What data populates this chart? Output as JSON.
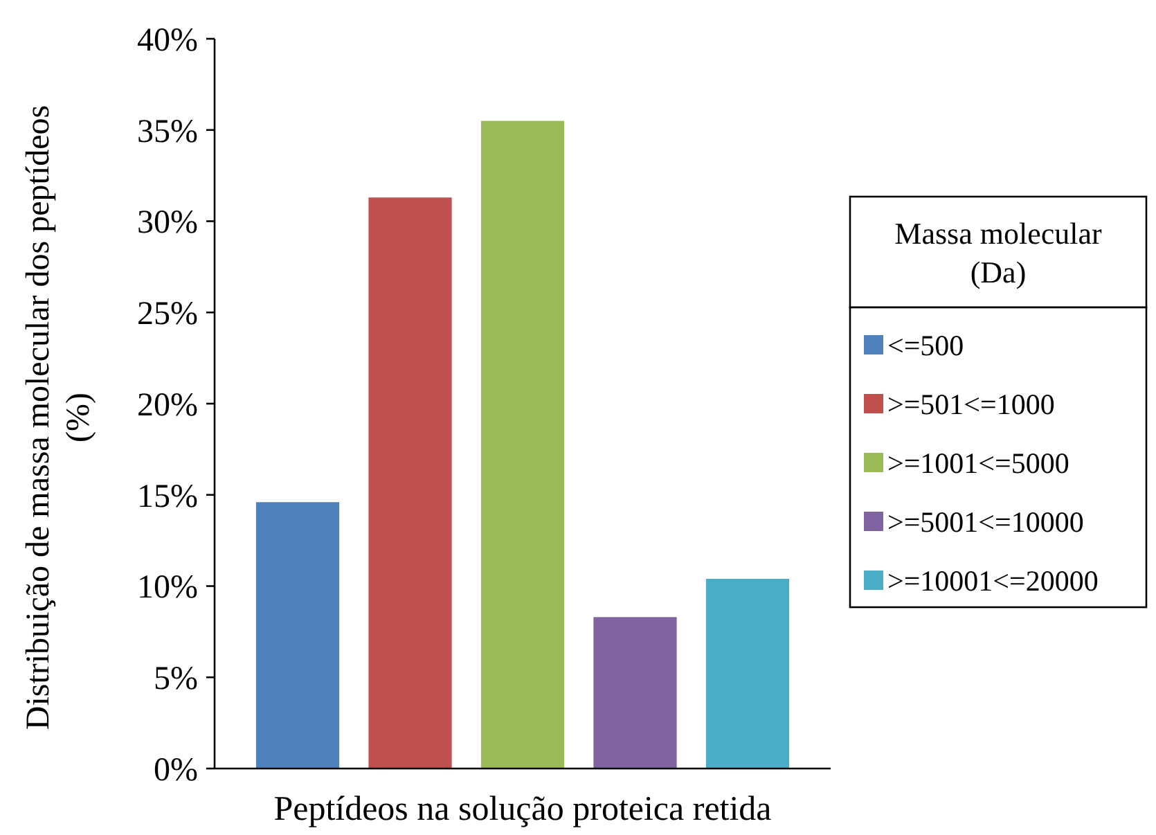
{
  "chart_data": {
    "type": "bar",
    "xlabel": "Peptídeos na solução proteica retida",
    "ylabel": "Distribuição de massa molecular dos peptídeos (%)",
    "legend_title": "Massa molecular (Da)",
    "categories": [
      null
    ],
    "ylim": [
      0,
      40
    ],
    "yticks": [
      {
        "value": 0,
        "label": "0%"
      },
      {
        "value": 5,
        "label": "5%"
      },
      {
        "value": 10,
        "label": "10%"
      },
      {
        "value": 15,
        "label": "15%"
      },
      {
        "value": 20,
        "label": "20%"
      },
      {
        "value": 25,
        "label": "25%"
      },
      {
        "value": 30,
        "label": "30%"
      },
      {
        "value": 35,
        "label": "35%"
      },
      {
        "value": 40,
        "label": "40%"
      }
    ],
    "series": [
      {
        "name": "<=500",
        "color": "#4f81bd",
        "values": [
          14.6
        ]
      },
      {
        "name": ">=501<=1000",
        "color": "#c0504d",
        "values": [
          31.3
        ]
      },
      {
        "name": ">=1001<=5000",
        "color": "#9bbb59",
        "values": [
          35.5
        ]
      },
      {
        "name": ">=5001<=10000",
        "color": "#8064a2",
        "values": [
          8.3
        ]
      },
      {
        "name": ">=10001<=20000",
        "color": "#4bacc6",
        "values": [
          10.4
        ]
      }
    ],
    "legend": "right",
    "grid": false
  }
}
